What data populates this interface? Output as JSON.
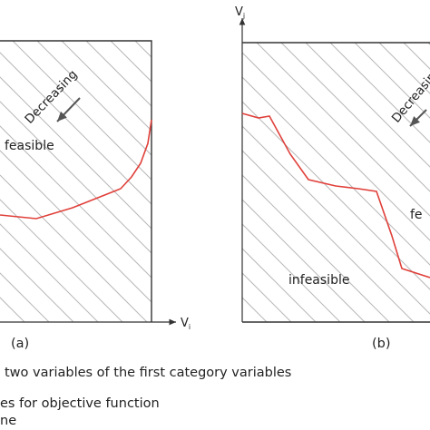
{
  "colors": {
    "background": "#ffffff",
    "frame": "#333333",
    "hatch": "#b8b8b8",
    "curve": "#e0403a",
    "text": "#222222",
    "arrow": "#555555"
  },
  "panel_a": {
    "caption": "(a)",
    "region_label": "feasible",
    "arrow_label": "Decreasing",
    "x_axis_label": "V",
    "x_axis_subscript": "i"
  },
  "panel_b": {
    "caption": "(b)",
    "region_label_infeasible": "infeasible",
    "region_label_cut": "fe",
    "arrow_label": "Decreasing",
    "y_axis_label": "V",
    "y_axis_subscript": "j"
  },
  "legend": {
    "line_1": "two variables of the first category variables",
    "line_2": "es for objective function",
    "line_3": "ne"
  },
  "icons": [
    "axis-arrow-icon",
    "decreasing-direction-arrow-icon",
    "hatch-pattern"
  ]
}
